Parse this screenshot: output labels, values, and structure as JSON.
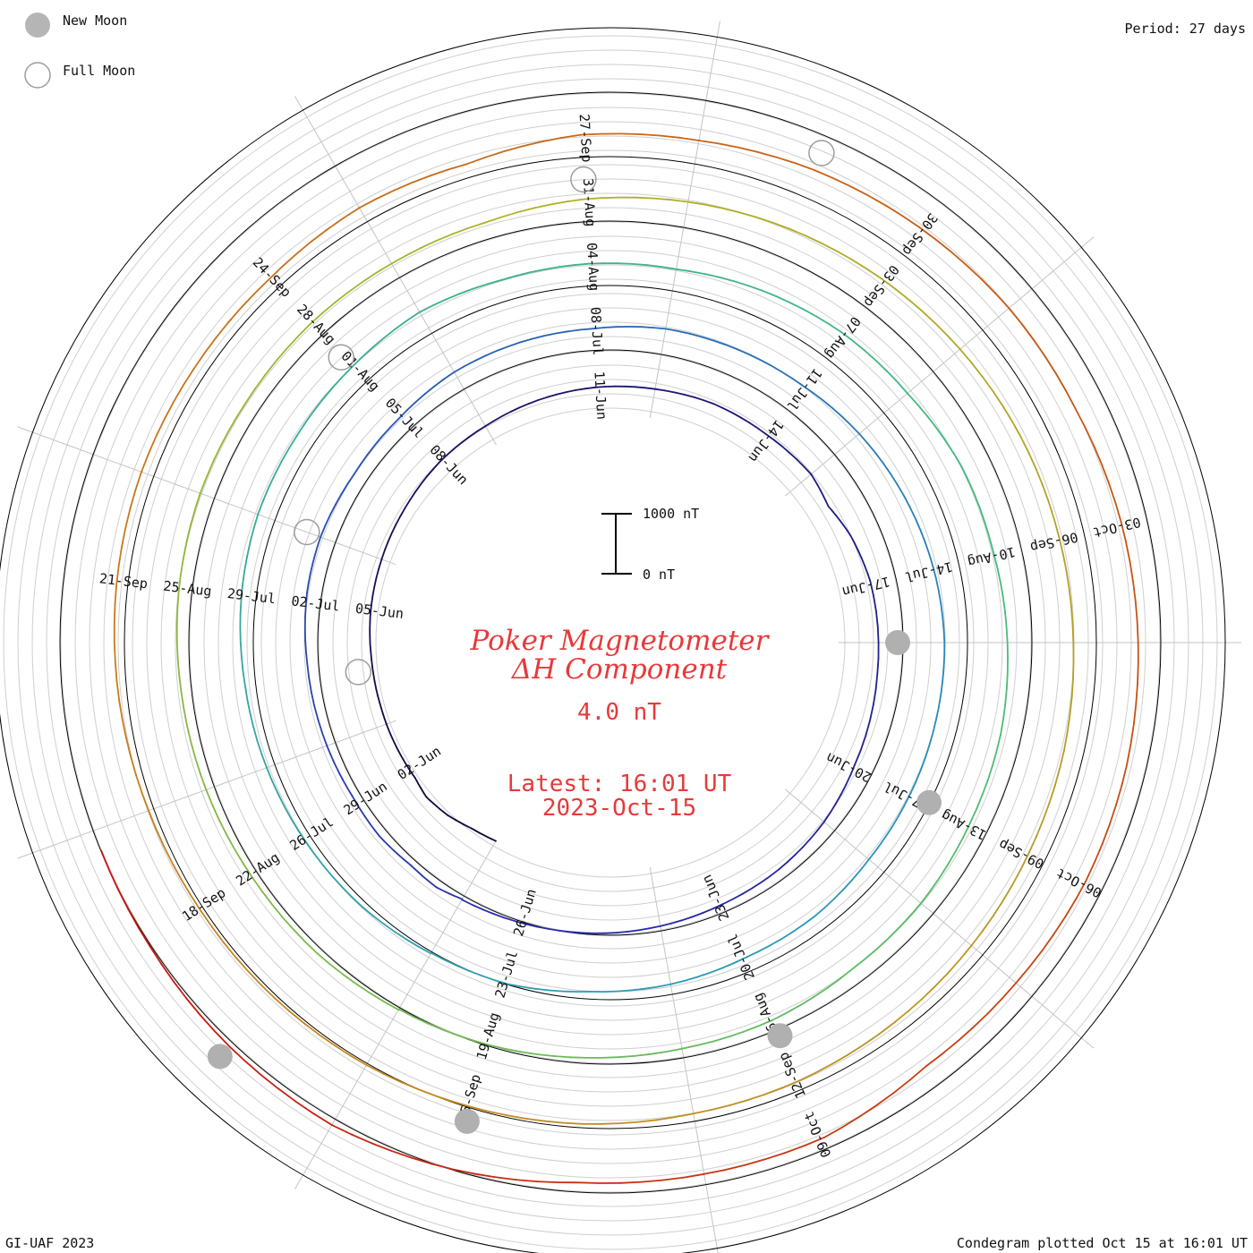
{
  "header": {
    "new_moon_label": "New Moon",
    "full_moon_label": "Full Moon",
    "period": "Period: 27 days"
  },
  "footer": {
    "left": "GI-UAF 2023",
    "right": "Condegram plotted Oct 15 at 16:01 UT"
  },
  "chart_data": {
    "type": "line",
    "subtype": "condegram-spiral",
    "title_line1": "Poker Magnetometer",
    "title_line2": "ΔH Component",
    "value_label": "4.0 nT",
    "latest_line1": "Latest: 16:01 UT",
    "latest_line2": "2023-Oct-15",
    "scale_bar": {
      "top_label": "1000 nT",
      "bottom_label": "0 nT",
      "value_nT": 1000
    },
    "period_days": 27,
    "start_date": "2023-05-31",
    "end_date": "2023-10-15",
    "grid": true,
    "legend": "top-left",
    "date_ticks": [
      "02-Jun",
      "05-Jun",
      "08-Jun",
      "11-Jun",
      "14-Jun",
      "17-Jun",
      "20-Jun",
      "23-Jun",
      "26-Jun",
      "29-Jun",
      "02-Jul",
      "05-Jul",
      "08-Jul",
      "11-Jul",
      "14-Jul",
      "17-Jul",
      "20-Jul",
      "23-Jul",
      "26-Jul",
      "29-Jul",
      "01-Aug",
      "04-Aug",
      "07-Aug",
      "10-Aug",
      "13-Aug",
      "16-Aug",
      "19-Aug",
      "22-Aug",
      "25-Aug",
      "28-Aug",
      "31-Aug",
      "03-Sep",
      "06-Sep",
      "09-Sep",
      "12-Sep",
      "15-Sep",
      "18-Sep",
      "21-Sep",
      "24-Sep",
      "27-Sep",
      "30-Sep",
      "03-Oct",
      "06-Oct",
      "09-Oct"
    ],
    "new_moons": [
      "2023-06-18",
      "2023-07-17",
      "2023-08-16",
      "2023-09-15",
      "2023-10-14"
    ],
    "full_moons": [
      "2023-06-04",
      "2023-07-03",
      "2023-08-01",
      "2023-08-31",
      "2023-09-29"
    ],
    "series": [
      {
        "values": [
          [
            0.0,
            15
          ],
          [
            0.5,
            40
          ],
          [
            1.0,
            110
          ],
          [
            1.5,
            140
          ],
          [
            1.9,
            80
          ],
          [
            2.3,
            70
          ],
          [
            2.8,
            55
          ],
          [
            3.4,
            35
          ],
          [
            4.2,
            20
          ],
          [
            5.0,
            25
          ],
          [
            6.0,
            15
          ],
          [
            7.0,
            10
          ],
          [
            8.0,
            20
          ],
          [
            9.0,
            5
          ],
          [
            10.0,
            15
          ],
          [
            11.0,
            20
          ],
          [
            12.0,
            10
          ],
          [
            13.0,
            15
          ],
          [
            14.0,
            -25
          ],
          [
            15.0,
            -35
          ],
          [
            15.6,
            -140
          ],
          [
            16.2,
            -65
          ],
          [
            17.0,
            -30
          ],
          [
            18.5,
            -60
          ],
          [
            20.0,
            -45
          ],
          [
            21.0,
            10
          ],
          [
            22.0,
            30
          ],
          [
            23.0,
            25
          ],
          [
            24.0,
            40
          ],
          [
            25.0,
            55
          ],
          [
            26.0,
            60
          ],
          [
            27.0,
            70
          ]
        ]
      },
      {
        "values": [
          [
            0.0,
            60
          ],
          [
            0.4,
            110
          ],
          [
            0.9,
            70
          ],
          [
            1.5,
            85
          ],
          [
            2.2,
            40
          ],
          [
            3.0,
            30
          ],
          [
            4.2,
            20
          ],
          [
            5.2,
            40
          ],
          [
            6.0,
            25
          ],
          [
            7.0,
            -45
          ],
          [
            8.0,
            -60
          ],
          [
            9.0,
            -30
          ],
          [
            10.0,
            -50
          ],
          [
            11.0,
            -75
          ],
          [
            12.0,
            -45
          ],
          [
            13.0,
            -70
          ],
          [
            14.0,
            -85
          ],
          [
            15.0,
            -60
          ],
          [
            16.0,
            -45
          ],
          [
            17.0,
            -30
          ],
          [
            18.0,
            -25
          ],
          [
            19.0,
            -55
          ],
          [
            20.0,
            -75
          ],
          [
            21.0,
            -90
          ],
          [
            22.0,
            -60
          ],
          [
            23.0,
            -80
          ],
          [
            24.0,
            -50
          ],
          [
            25.0,
            -45
          ],
          [
            26.0,
            30
          ],
          [
            27.0,
            20
          ]
        ]
      },
      {
        "values": [
          [
            0.0,
            30
          ],
          [
            1.0,
            50
          ],
          [
            2.0,
            35
          ],
          [
            3.0,
            25
          ],
          [
            4.0,
            20
          ],
          [
            5.0,
            45
          ],
          [
            6.0,
            60
          ],
          [
            7.0,
            30
          ],
          [
            8.0,
            25
          ],
          [
            9.0,
            50
          ],
          [
            10.0,
            -40
          ],
          [
            11.0,
            -65
          ],
          [
            12.0,
            -110
          ],
          [
            13.0,
            -80
          ],
          [
            14.0,
            -60
          ],
          [
            15.0,
            -85
          ],
          [
            16.0,
            -40
          ],
          [
            17.0,
            -70
          ],
          [
            18.0,
            -50
          ],
          [
            19.0,
            -25
          ],
          [
            20.0,
            -40
          ],
          [
            21.0,
            -30
          ],
          [
            22.0,
            -55
          ],
          [
            23.0,
            -20
          ],
          [
            24.0,
            -35
          ],
          [
            25.0,
            -15
          ],
          [
            26.0,
            20
          ],
          [
            27.0,
            30
          ]
        ]
      },
      {
        "values": [
          [
            0.0,
            40
          ],
          [
            1.0,
            55
          ],
          [
            2.0,
            30
          ],
          [
            3.0,
            25
          ],
          [
            4.0,
            15
          ],
          [
            5.0,
            20
          ],
          [
            6.0,
            10
          ],
          [
            7.0,
            -30
          ],
          [
            8.0,
            -50
          ],
          [
            9.0,
            -90
          ],
          [
            10.0,
            -120
          ],
          [
            11.0,
            -60
          ],
          [
            12.0,
            -45
          ],
          [
            13.0,
            -30
          ],
          [
            14.0,
            -20
          ],
          [
            15.0,
            -15
          ],
          [
            16.0,
            -10
          ],
          [
            17.0,
            -20
          ],
          [
            18.0,
            -25
          ],
          [
            19.0,
            -10
          ],
          [
            20.0,
            -15
          ],
          [
            21.0,
            -5
          ],
          [
            22.0,
            5
          ],
          [
            23.0,
            10
          ],
          [
            24.0,
            -10
          ],
          [
            25.0,
            15
          ],
          [
            26.0,
            20
          ],
          [
            27.0,
            30
          ]
        ]
      },
      {
        "values": [
          [
            0.0,
            30
          ],
          [
            1.0,
            10
          ],
          [
            2.0,
            -20
          ],
          [
            3.0,
            -30
          ],
          [
            4.0,
            -15
          ],
          [
            5.0,
            -10
          ],
          [
            6.0,
            -20
          ],
          [
            7.0,
            -70
          ],
          [
            8.0,
            -110
          ],
          [
            9.0,
            -90
          ],
          [
            10.0,
            -170
          ],
          [
            11.0,
            -60
          ],
          [
            12.0,
            -80
          ],
          [
            13.0,
            -40
          ],
          [
            14.0,
            -30
          ],
          [
            15.0,
            -25
          ],
          [
            16.0,
            -60
          ],
          [
            17.0,
            -30
          ],
          [
            18.0,
            -20
          ],
          [
            19.0,
            -10
          ],
          [
            20.0,
            -30
          ],
          [
            21.0,
            -110
          ],
          [
            22.0,
            -170
          ],
          [
            23.0,
            -30
          ],
          [
            24.0,
            -60
          ],
          [
            25.0,
            -80
          ],
          [
            26.0,
            30
          ],
          [
            27.0,
            110
          ]
        ]
      },
      {
        "values": [
          [
            0.0,
            110
          ],
          [
            1.0,
            40
          ],
          [
            2.0,
            -60
          ],
          [
            3.0,
            -130
          ],
          [
            4.0,
            -40
          ],
          [
            5.0,
            -110
          ],
          [
            6.0,
            -100
          ],
          [
            7.0,
            -20
          ],
          [
            8.0,
            20
          ],
          [
            9.0,
            -10
          ],
          [
            10.0,
            -80
          ],
          [
            11.0,
            -170
          ],
          [
            12.0,
            -60
          ],
          [
            13.0,
            -50
          ],
          [
            14.0,
            -30
          ],
          [
            15.0,
            -20
          ],
          [
            16.0,
            -20
          ],
          [
            17.0,
            -10
          ],
          [
            18.0,
            -20
          ],
          [
            19.0,
            -15
          ],
          [
            20.0,
            -30
          ],
          [
            21.0,
            -100
          ],
          [
            22.0,
            -60
          ],
          [
            23.0,
            -30
          ],
          [
            24.0,
            -20
          ],
          [
            25.0,
            -10
          ],
          [
            26.0,
            -5
          ],
          [
            27.0,
            20
          ]
        ]
      },
      {
        "values": [
          [
            0.0,
            -5
          ],
          [
            1.0,
            -10
          ],
          [
            2.0,
            -30
          ],
          [
            3.0,
            -15
          ],
          [
            4.0,
            -20
          ],
          [
            5.0,
            -10
          ],
          [
            6.0,
            -40
          ],
          [
            7.0,
            -30
          ],
          [
            8.0,
            -15
          ],
          [
            9.0,
            -20
          ],
          [
            10.0,
            -10
          ],
          [
            11.0,
            -30
          ],
          [
            12.0,
            -20
          ],
          [
            13.0,
            -15
          ],
          [
            14.0,
            -10
          ],
          [
            15.0,
            -20
          ],
          [
            16.0,
            -25
          ]
        ]
      }
    ]
  }
}
